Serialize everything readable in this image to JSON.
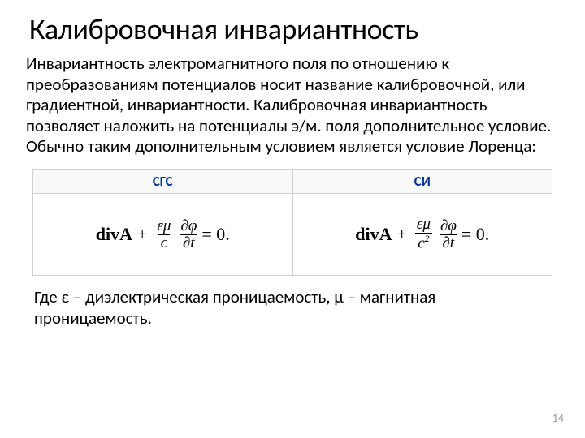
{
  "slide": {
    "title": "Калибровочная инвариантность",
    "paragraph": "Инвариантность электромагнитного поля по отношению к преобразованиям потенциалов носит название калибровочной, или градиентной, инвариантности. Калибровочная инвариантность позволяет наложить на потенциалы э/м. поля дополнительное условие. Обычно таким дополнительным условием является условие Лоренца:",
    "table": {
      "headers": [
        "СГС",
        "СИ"
      ],
      "eq": {
        "divA": "divA",
        "plus": "+",
        "coef_num": "εμ",
        "coef_den_left": "c",
        "coef_den_right": "c",
        "d_num": "∂φ",
        "d_den": "∂t",
        "equals_zero": " = 0."
      },
      "c2_sup": "2"
    },
    "footer": "Где ε – диэлектрическая проницаемость, μ – магнитная проницаемость.",
    "page_number": "14"
  }
}
